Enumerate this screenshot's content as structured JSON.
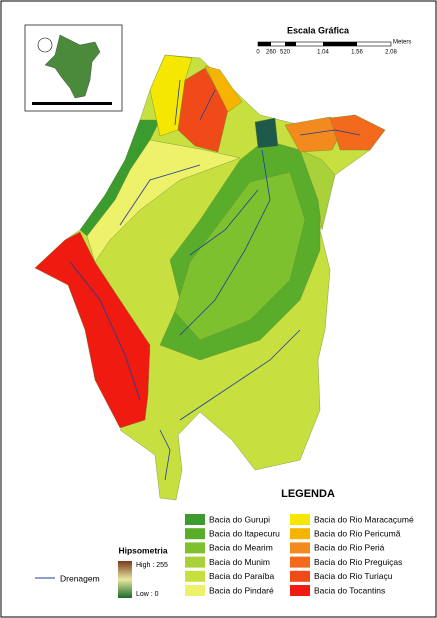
{
  "scale_bar": {
    "title": "Escala Gráfica",
    "ticks": [
      "0",
      "260",
      "520",
      "1.04",
      "1.56",
      "2.08"
    ],
    "unit": "Meters"
  },
  "legend": {
    "title": "LEGENDA",
    "items": [
      {
        "label": "Bacia do Gurupi",
        "color": "#3c9b2e"
      },
      {
        "label": "Bacia do Itapecuru",
        "color": "#5aad2b"
      },
      {
        "label": "Bacia do Mearim",
        "color": "#7ec12e"
      },
      {
        "label": "Bacia do Munim",
        "color": "#a9d23a"
      },
      {
        "label": "Bacia do Paraíba",
        "color": "#c8e03f"
      },
      {
        "label": "Bacia do Pindaré",
        "color": "#eef26a"
      },
      {
        "label": "Bacia do Rio Maracaçumé",
        "color": "#f6e700"
      },
      {
        "label": "Bacia do Rio Pericumã",
        "color": "#f5b400"
      },
      {
        "label": "Bacia do Rio Periá",
        "color": "#f28a1e"
      },
      {
        "label": "Bacia do Rio Preguiças",
        "color": "#f36a1c"
      },
      {
        "label": "Bacia do Rio Turiaçu",
        "color": "#f04a18"
      },
      {
        "label": "Bacia do Tocantins",
        "color": "#ef1a10"
      }
    ]
  },
  "hypsometry": {
    "title": "Hipsometria",
    "high": "High : 255",
    "low": "Low : 0"
  },
  "drainage_label": "Drenagem"
}
